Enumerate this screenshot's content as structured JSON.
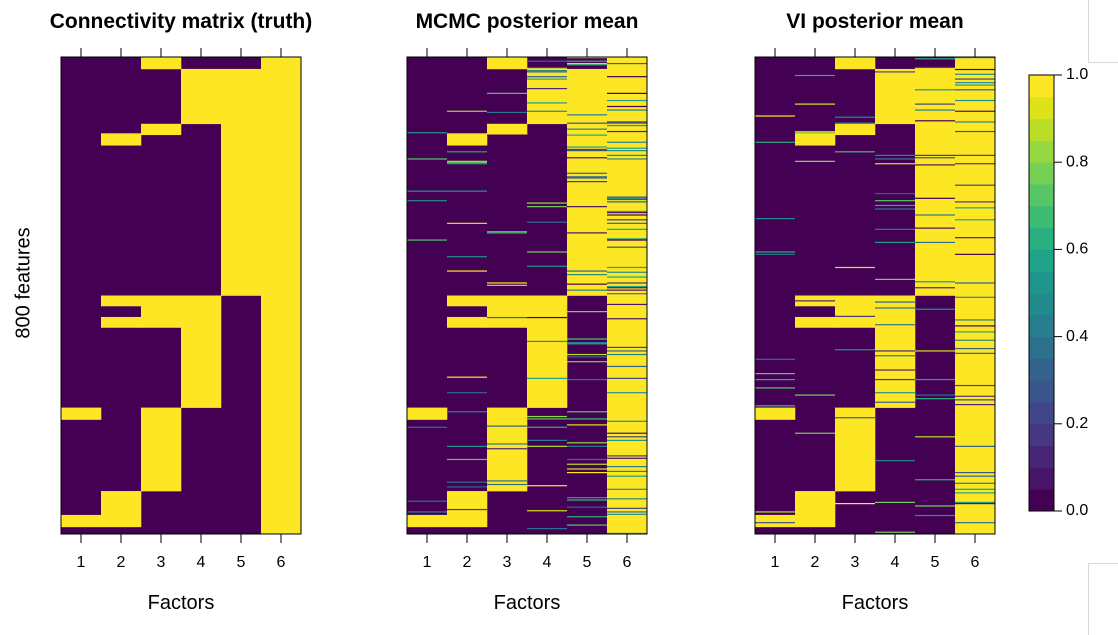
{
  "chart_data": {
    "type": "heatmap",
    "n_rows": 800,
    "ylabel": "800 features",
    "xlabel": "Factors",
    "x_ticks": [
      "1",
      "2",
      "3",
      "4",
      "5",
      "6"
    ],
    "panels": [
      {
        "title": "Connectivity matrix (truth)",
        "blocks": [
          {
            "factor": 1,
            "ranges": [
              [
                0.0,
                0.0
              ],
              [
                0.0,
                0.0
              ]
            ],
            "value": 0.0
          }
        ],
        "truth": [
          {
            "factor": 1,
            "segments": [
              [
                0.735,
                0.76
              ],
              [
                0.96,
                0.985
              ]
            ]
          },
          {
            "factor": 2,
            "segments": [
              [
                0.16,
                0.185
              ],
              [
                0.5,
                0.522
              ],
              [
                0.545,
                0.567
              ],
              [
                0.91,
                0.985
              ]
            ]
          },
          {
            "factor": 3,
            "segments": [
              [
                0.0,
                0.025
              ],
              [
                0.14,
                0.163
              ],
              [
                0.5,
                0.567
              ],
              [
                0.735,
                0.91
              ]
            ]
          },
          {
            "factor": 4,
            "segments": [
              [
                0.025,
                0.14
              ],
              [
                0.5,
                0.735
              ]
            ]
          },
          {
            "factor": 5,
            "segments": [
              [
                0.025,
                0.5
              ]
            ]
          },
          {
            "factor": 6,
            "segments": [
              [
                0.0,
                1.0
              ]
            ]
          }
        ]
      },
      {
        "title": "MCMC posterior mean",
        "noise": [
          0.02,
          0.03,
          0.03,
          0.05,
          0.1,
          0.14
        ]
      },
      {
        "title": "VI posterior mean",
        "noise": [
          0.02,
          0.03,
          0.03,
          0.04,
          0.06,
          0.08
        ]
      }
    ],
    "colorbar": {
      "ticks": [
        "0.0",
        "0.2",
        "0.4",
        "0.6",
        "0.8",
        "1.0"
      ],
      "range": [
        0,
        1
      ],
      "n_levels": 20,
      "colors": [
        "#440154",
        "#481467",
        "#482576",
        "#453781",
        "#404688",
        "#39558c",
        "#33638d",
        "#2d718e",
        "#287d8e",
        "#238a8d",
        "#1f968b",
        "#20a386",
        "#29af7f",
        "#3dbc74",
        "#56c667",
        "#75d054",
        "#95d840",
        "#bade28",
        "#dde318",
        "#fde725"
      ]
    }
  }
}
